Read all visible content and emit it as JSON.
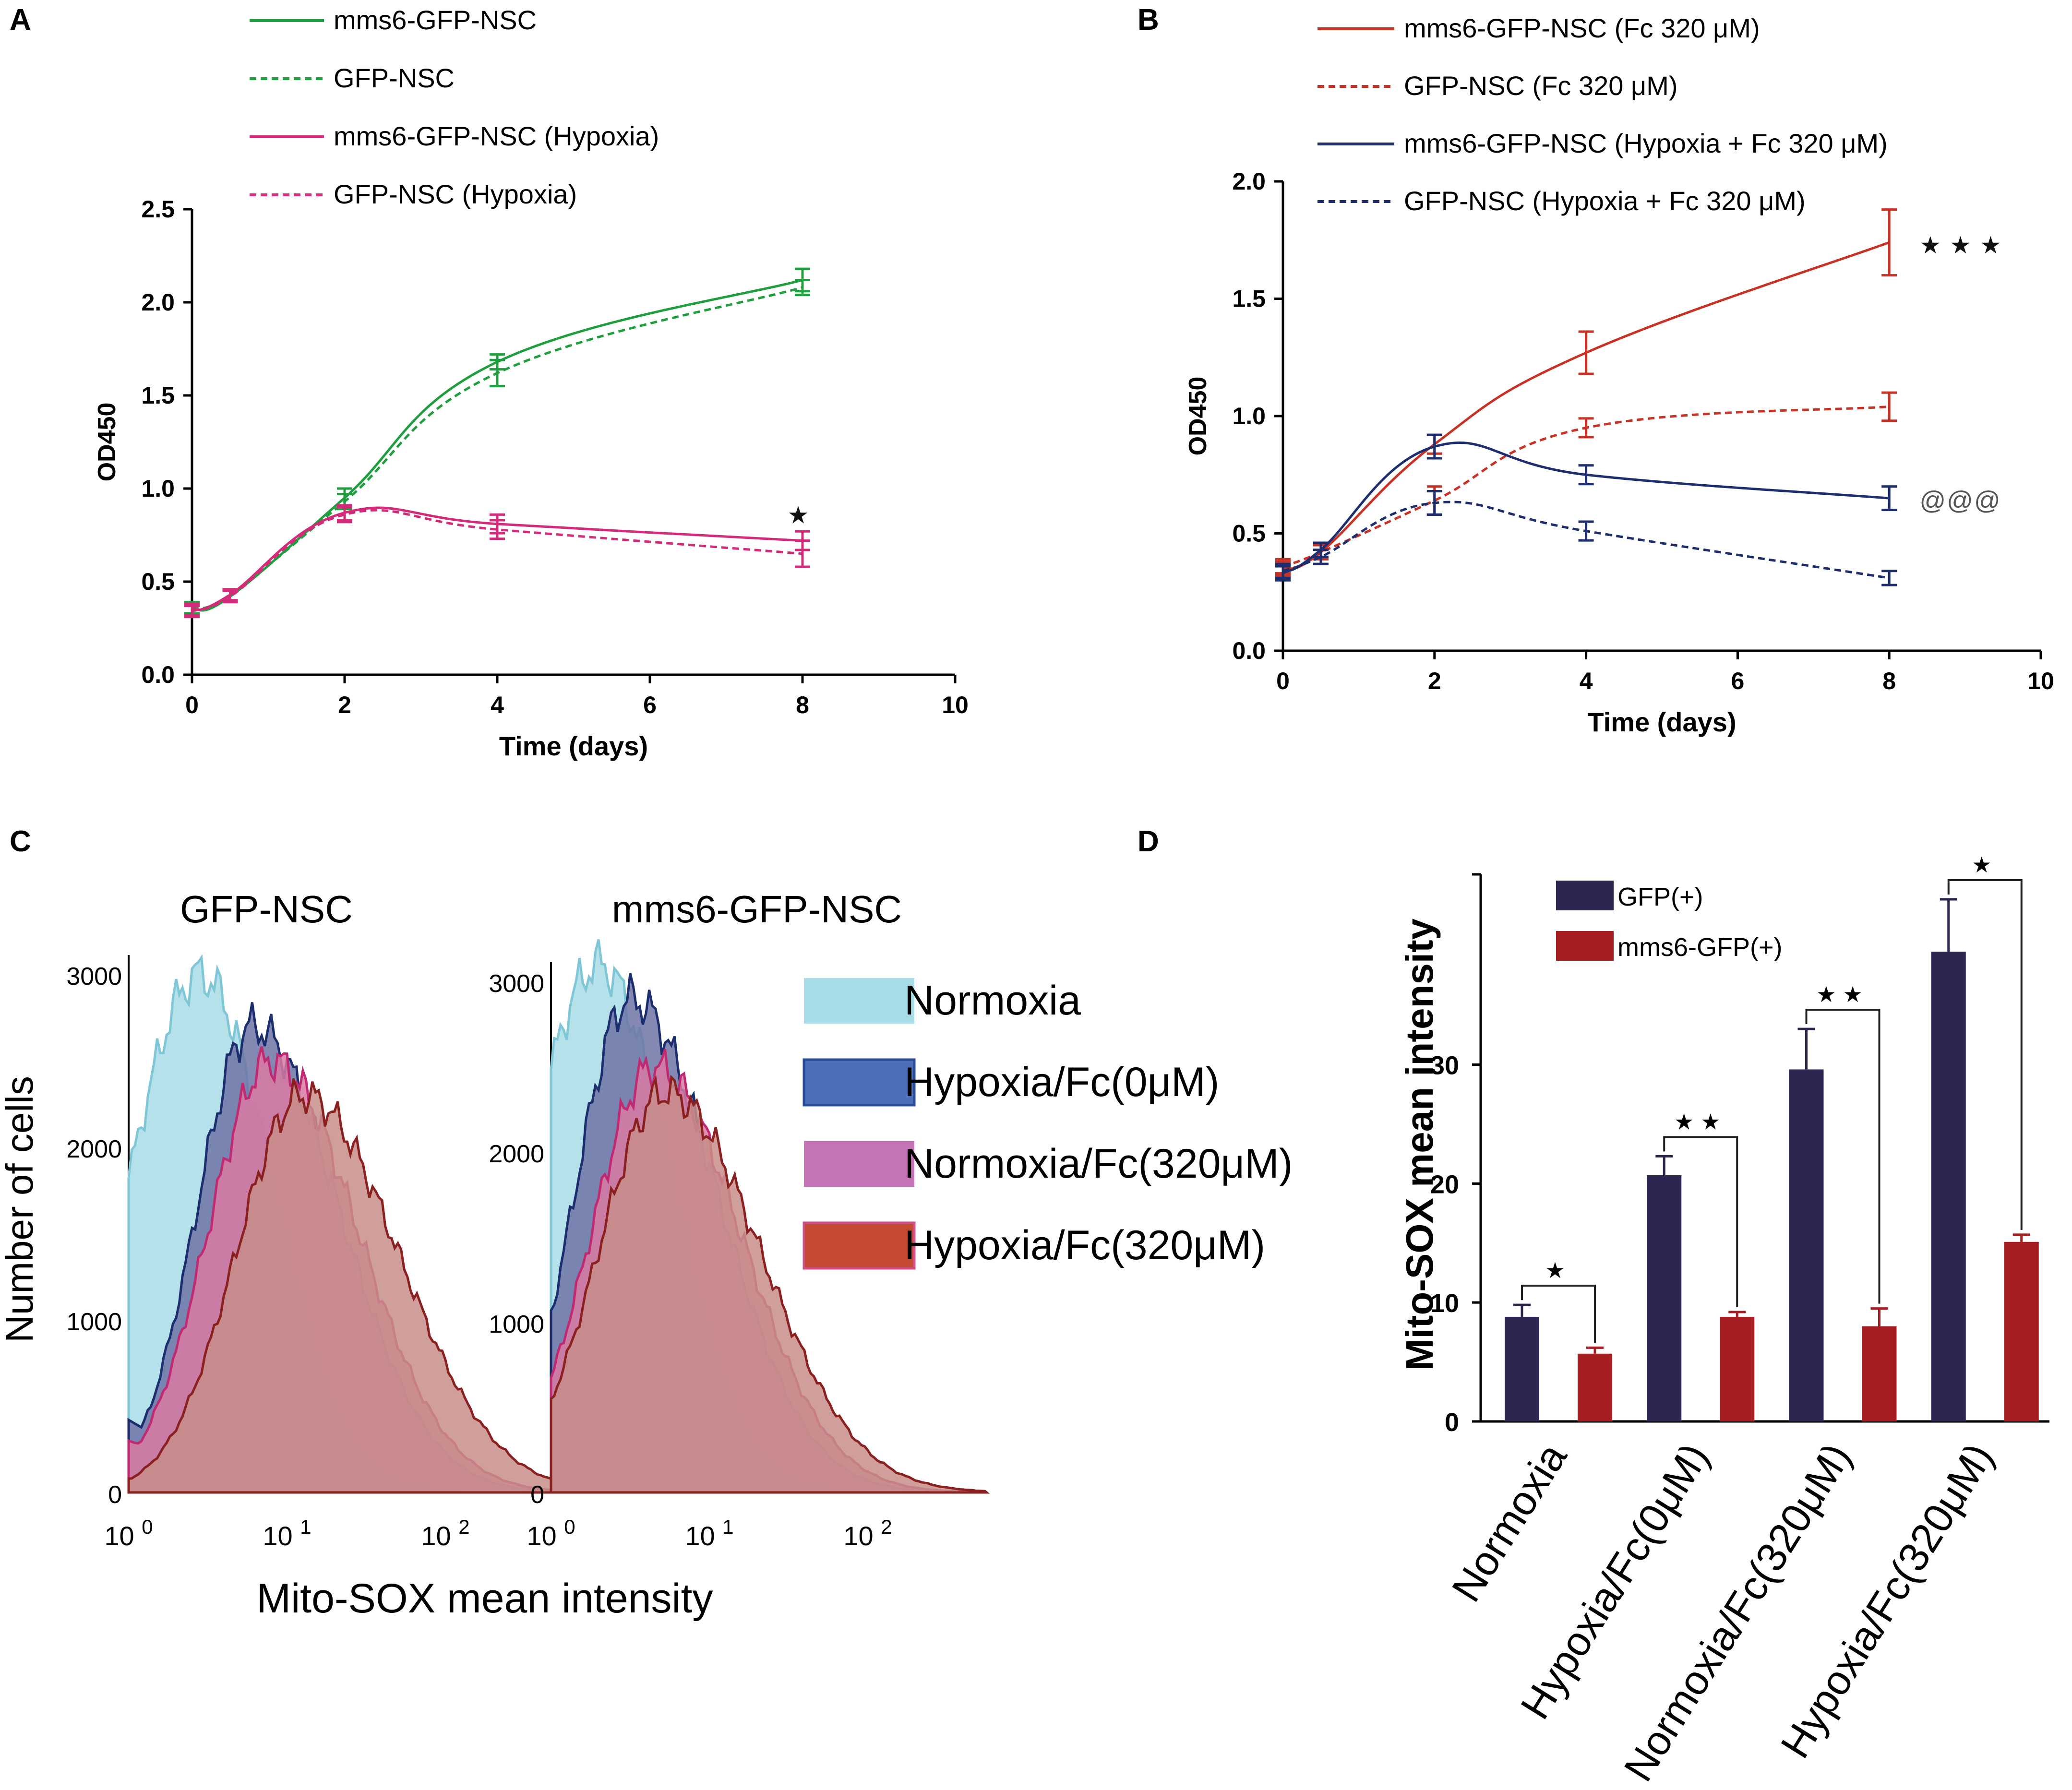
{
  "figure": {
    "panel_labels": [
      "A",
      "B",
      "C",
      "D"
    ]
  },
  "chart_data": [
    {
      "panel": "A",
      "type": "line",
      "title": "",
      "xlabel": "Time (days)",
      "ylabel": "OD450",
      "xlim": [
        0,
        10
      ],
      "ylim": [
        0,
        2.5
      ],
      "xticks": [
        0,
        2,
        4,
        6,
        8,
        10
      ],
      "yticks": [
        0.0,
        0.5,
        1.0,
        1.5,
        2.0,
        2.5
      ],
      "ytick_labels": [
        "0.0",
        "0.5",
        "1.0",
        "1.5",
        "2.0",
        "2.5"
      ],
      "legend_position": "top-left",
      "annotations": [
        {
          "text": "★",
          "x": 8,
          "y": 0.86
        }
      ],
      "series": [
        {
          "name": "mms6-GFP-NSC",
          "color": "#1e9e3c",
          "dash": false,
          "x": [
            0,
            0.5,
            2,
            4,
            8
          ],
          "y": [
            0.35,
            0.42,
            0.95,
            1.68,
            2.12
          ],
          "err": [
            0.03,
            0.03,
            0.05,
            0.04,
            0.06
          ]
        },
        {
          "name": "GFP-NSC",
          "color": "#1e9e3c",
          "dash": true,
          "x": [
            0,
            0.5,
            2,
            4,
            8
          ],
          "y": [
            0.36,
            0.43,
            0.93,
            1.62,
            2.08
          ],
          "err": [
            0.03,
            0.03,
            0.04,
            0.07,
            0.04
          ]
        },
        {
          "name": "mms6-GFP-NSC (Hypoxia)",
          "color": "#d42a7a",
          "dash": false,
          "x": [
            0,
            0.5,
            2,
            4,
            8
          ],
          "y": [
            0.34,
            0.43,
            0.87,
            0.81,
            0.72
          ],
          "err": [
            0.03,
            0.03,
            0.04,
            0.05,
            0.05
          ]
        },
        {
          "name": "GFP-NSC (Hypoxia)",
          "color": "#d42a7a",
          "dash": true,
          "x": [
            0,
            0.5,
            2,
            4,
            8
          ],
          "y": [
            0.35,
            0.42,
            0.86,
            0.78,
            0.65
          ],
          "err": [
            0.03,
            0.03,
            0.04,
            0.05,
            0.07
          ]
        }
      ]
    },
    {
      "panel": "B",
      "type": "line",
      "title": "",
      "xlabel": "Time (days)",
      "ylabel": "OD450",
      "xlim": [
        0,
        10
      ],
      "ylim": [
        0,
        2.0
      ],
      "xticks": [
        0,
        2,
        4,
        6,
        8,
        10
      ],
      "yticks": [
        0.0,
        0.5,
        1.0,
        1.5,
        2.0
      ],
      "ytick_labels": [
        "0.0",
        "0.5",
        "1.0",
        "1.5",
        "2.0"
      ],
      "legend_position": "top",
      "annotations": [
        {
          "text": "★★★",
          "x": 8.4,
          "y": 1.73
        },
        {
          "text": "@@@",
          "x": 8.4,
          "y": 0.64
        }
      ],
      "series": [
        {
          "name": "mms6-GFP-NSC (Fc 320 μM)",
          "color": "#c83225",
          "dash": false,
          "x": [
            0,
            0.5,
            2,
            4,
            8
          ],
          "y": [
            0.35,
            0.42,
            0.88,
            1.27,
            1.74
          ],
          "err": [
            0.03,
            0.03,
            0.04,
            0.09,
            0.14
          ]
        },
        {
          "name": "GFP-NSC (Fc 320 μM)",
          "color": "#c83225",
          "dash": true,
          "x": [
            0,
            0.5,
            2,
            4,
            8
          ],
          "y": [
            0.36,
            0.42,
            0.64,
            0.95,
            1.04
          ],
          "err": [
            0.03,
            0.03,
            0.06,
            0.04,
            0.06
          ]
        },
        {
          "name": "mms6-GFP-NSC (Hypoxia + Fc 320 μM)",
          "color": "#1e2d6e",
          "dash": false,
          "x": [
            0,
            0.5,
            2,
            4,
            8
          ],
          "y": [
            0.33,
            0.43,
            0.87,
            0.75,
            0.65
          ],
          "err": [
            0.03,
            0.03,
            0.05,
            0.04,
            0.05
          ]
        },
        {
          "name": "GFP-NSC (Hypoxia + Fc 320 μM)",
          "color": "#1e2d6e",
          "dash": true,
          "x": [
            0,
            0.5,
            2,
            4,
            8
          ],
          "y": [
            0.34,
            0.4,
            0.63,
            0.51,
            0.31
          ],
          "err": [
            0.03,
            0.03,
            0.05,
            0.04,
            0.03
          ]
        }
      ]
    },
    {
      "panel": "C",
      "type": "area",
      "subtype": "flow-cytometry histogram overlay",
      "xlabel": "Mito-SOX mean intensity",
      "ylabel": "Number of cells",
      "x_scale": "log",
      "xticks": [
        "10^0",
        "10^1",
        "10^2"
      ],
      "yticks": [
        0,
        1000,
        2000,
        3000
      ],
      "legend_position": "right",
      "legend": [
        {
          "name": "Normoxia",
          "color": "#a8dce6"
        },
        {
          "name": "Hypoxia/Fc(0μM)",
          "color": "#4b6fb8"
        },
        {
          "name": "Normoxia/Fc(320μM)",
          "color": "#c474b4"
        },
        {
          "name": "Hypoxia/Fc(320μM)",
          "color": "#c44a34"
        }
      ],
      "plots": [
        {
          "title": "GFP-NSC",
          "peaks": [
            {
              "name": "Normoxia",
              "peak_count": 3000,
              "peak_log10_x": 0.45
            },
            {
              "name": "Hypoxia/Fc(0μM)",
              "peak_count": 2700,
              "peak_log10_x": 0.78
            },
            {
              "name": "Normoxia/Fc(320μM)",
              "peak_count": 2500,
              "peak_log10_x": 0.9
            },
            {
              "name": "Hypoxia/Fc(320μM)",
              "peak_count": 2300,
              "peak_log10_x": 1.1
            }
          ]
        },
        {
          "title": "mms6-GFP-NSC",
          "peaks": [
            {
              "name": "Normoxia",
              "peak_count": 3100,
              "peak_log10_x": 0.3
            },
            {
              "name": "Hypoxia/Fc(0μM)",
              "peak_count": 2900,
              "peak_log10_x": 0.5
            },
            {
              "name": "Normoxia/Fc(320μM)",
              "peak_count": 2500,
              "peak_log10_x": 0.65
            },
            {
              "name": "Hypoxia/Fc(320μM)",
              "peak_count": 2350,
              "peak_log10_x": 0.72
            }
          ]
        }
      ]
    },
    {
      "panel": "D",
      "type": "bar",
      "xlabel": "",
      "ylabel": "Mito-SOX mean intensity",
      "ylim": [
        0,
        46
      ],
      "yticks": [
        0,
        10,
        20,
        30
      ],
      "legend_position": "top-left",
      "categories": [
        "Normoxia",
        "Hypoxia/Fc(0μM)",
        "Normoxia/Fc(320μM)",
        "Hypoxia/Fc(320μM)"
      ],
      "series": [
        {
          "name": "GFP(+)",
          "color": "#2e2550",
          "values": [
            8.8,
            20.7,
            29.6,
            39.5
          ],
          "err": [
            1.0,
            1.6,
            3.4,
            4.4
          ]
        },
        {
          "name": "mms6-GFP(+)",
          "color": "#a41e22",
          "values": [
            5.7,
            8.8,
            8.0,
            15.1
          ],
          "err": [
            0.5,
            0.4,
            1.5,
            0.6
          ]
        }
      ],
      "significance": [
        "★",
        "★★",
        "★★",
        "★"
      ]
    }
  ]
}
